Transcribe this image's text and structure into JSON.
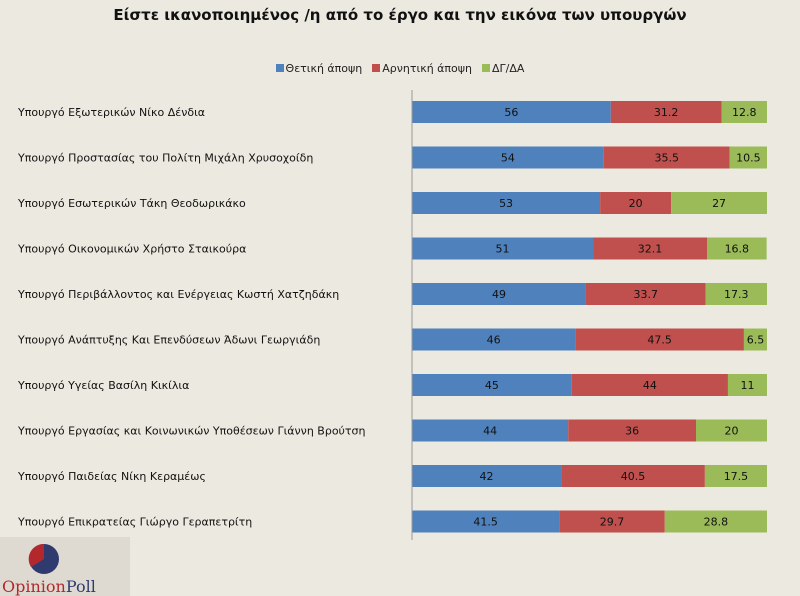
{
  "chart_data": {
    "type": "bar",
    "stacked": true,
    "orientation": "horizontal",
    "title": "Είστε ικανοποιημένος /η από το έργο και την εικόνα των υπουργών",
    "categories": [
      "Υπουργό Εξωτερικών Νίκο Δένδια",
      "Υπουργό Προστασίας του Πολίτη Μιχάλη Χρυσοχοίδη",
      "Υπουργό Εσωτερικών Τάκη Θεοδωρικάκο",
      "Υπουργό Οικονομικών Χρήστο Σταικούρα",
      "Υπουργό  Περιβάλλοντος και Ενέργειας Κωστή Χατζηδάκη",
      "Υπουργό Ανάπτυξης Και Επενδύσεων Άδωνι Γεωργιάδη",
      "Υπουργό Υγείας Βασίλη Κικίλια",
      "Υπουργό Εργασίας και Κοινωνικών Υποθέσεων Γιάννη Βρούτση",
      "Υπουργό Παιδείας Νίκη Κεραμέως",
      "Υπουργό Επικρατείας Γιώργο Γεραπετρίτη"
    ],
    "series": [
      {
        "name": "Θετική άποψη",
        "color": "#4f81bd",
        "values": [
          56,
          54,
          53,
          51,
          49,
          46,
          45,
          44,
          42,
          41.5
        ]
      },
      {
        "name": "Αρνητική άποψη",
        "color": "#c0504d",
        "values": [
          31.2,
          35.5,
          20,
          32.1,
          33.7,
          47.5,
          44,
          36,
          40.5,
          29.7
        ]
      },
      {
        "name": "ΔΓ/ΔΑ",
        "color": "#9bbb59",
        "values": [
          12.8,
          10.5,
          27,
          16.8,
          17.3,
          6.5,
          11,
          20,
          17.5,
          28.8
        ]
      }
    ],
    "xlim": [
      0,
      100
    ],
    "legend_position": "top",
    "grid": false
  },
  "logo": {
    "part1": "Opinion",
    "part2": "Poll"
  }
}
